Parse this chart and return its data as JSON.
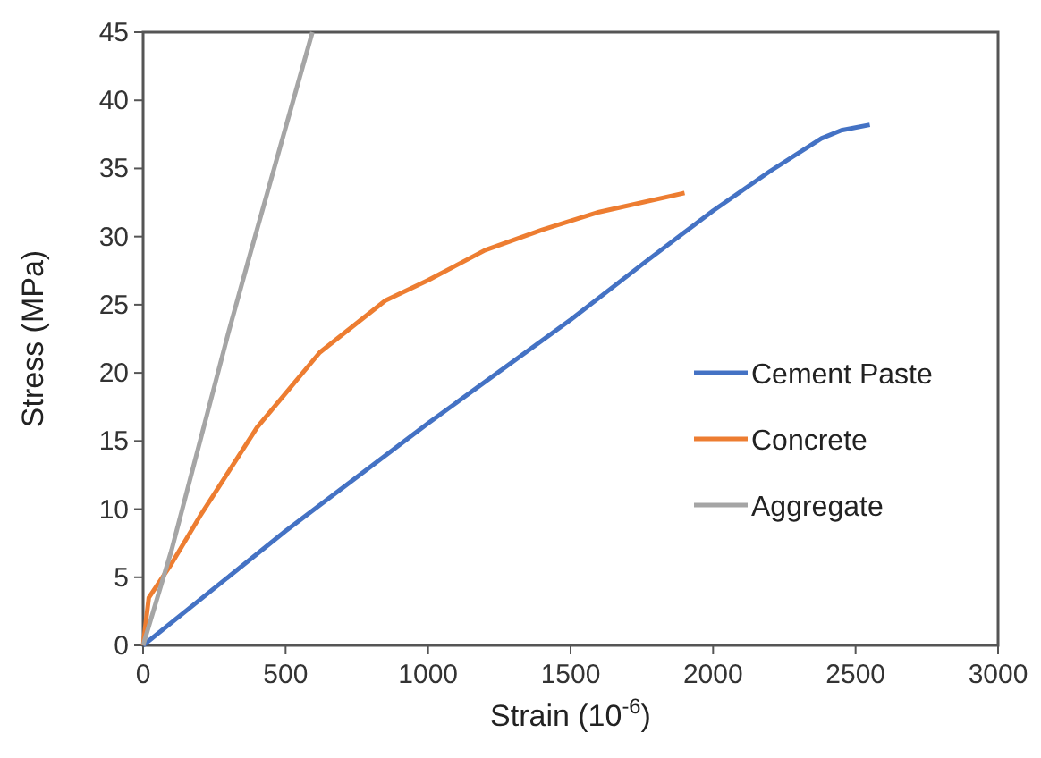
{
  "chart_data": {
    "type": "line",
    "xlabel": "Strain (10$^{-6}$)",
    "ylabel": "Stress (MPa)",
    "xlim": [
      0,
      3000
    ],
    "xticks": [
      0,
      500,
      1000,
      1500,
      2000,
      2500,
      3000
    ],
    "ylim": [
      0,
      45
    ],
    "yticks": [
      0,
      5,
      10,
      15,
      20,
      25,
      30,
      35,
      40,
      45
    ],
    "grid": false,
    "legend": "right",
    "marker": "none",
    "line_style": "solid",
    "series": [
      {
        "name": "Cement Paste",
        "color": "#4472c4",
        "x": [
          0,
          500,
          1000,
          1500,
          1760,
          2000,
          2200,
          2380,
          2450,
          2550
        ],
        "values": [
          0,
          8.4,
          16.3,
          23.9,
          28.1,
          31.9,
          34.8,
          37.2,
          37.8,
          38.2
        ]
      },
      {
        "name": "Concrete",
        "color": "#ed7d31",
        "x": [
          0,
          20,
          100,
          200,
          400,
          620,
          850,
          1000,
          1200,
          1400,
          1600,
          1900
        ],
        "values": [
          0,
          3.5,
          6,
          9.5,
          16,
          21.5,
          25.3,
          26.8,
          29,
          30.5,
          31.8,
          33.2
        ]
      },
      {
        "name": "Aggregate",
        "color": "#a5a5a5",
        "x": [
          0,
          100,
          200,
          300,
          374,
          500,
          594
        ],
        "values": [
          0,
          7,
          15,
          23,
          28.6,
          38,
          45
        ]
      }
    ]
  }
}
